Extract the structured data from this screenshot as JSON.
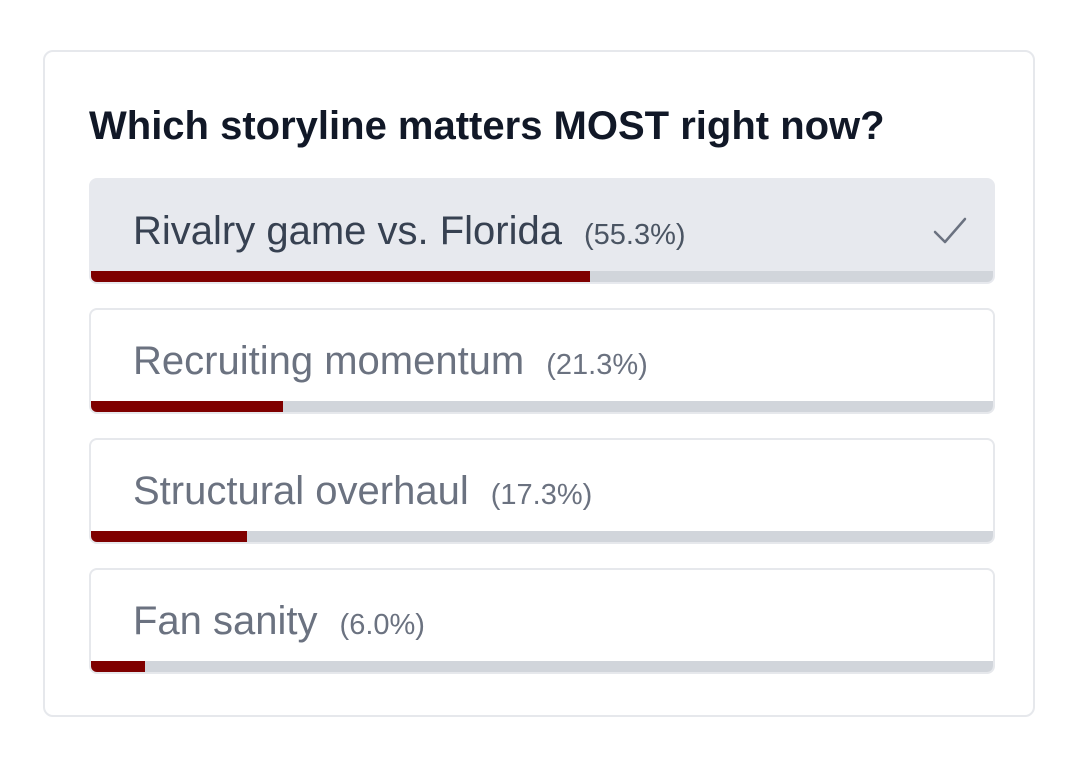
{
  "poll": {
    "question": "Which storyline matters MOST right now?",
    "accent_color": "#7f0000",
    "options": [
      {
        "label": "Rivalry game vs. Florida",
        "percent_text": "(55.3%)",
        "percent": 55.3,
        "selected": true,
        "icon": "check-icon"
      },
      {
        "label": "Recruiting momentum",
        "percent_text": "(21.3%)",
        "percent": 21.3,
        "selected": false
      },
      {
        "label": "Structural overhaul",
        "percent_text": "(17.3%)",
        "percent": 17.3,
        "selected": false
      },
      {
        "label": "Fan sanity",
        "percent_text": "(6.0%)",
        "percent": 6.0,
        "selected": false
      }
    ]
  }
}
